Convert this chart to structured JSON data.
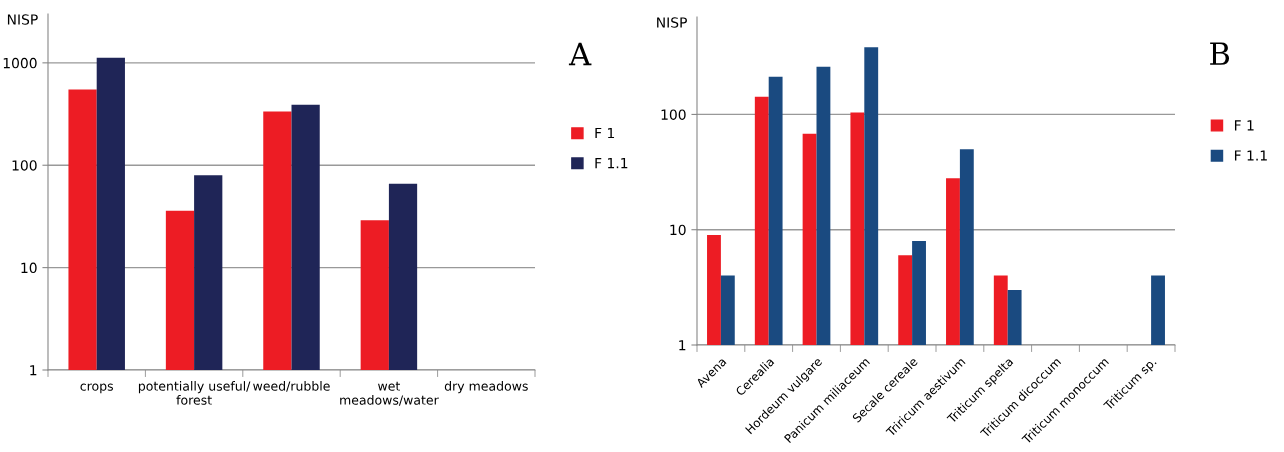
{
  "chart_data": [
    {
      "type": "bar",
      "ylabel": "NISP",
      "categories": [
        "crops",
        "potentially useful/\nforest",
        "weed/rubble",
        "wet\nmeadows/water",
        "dry meadows"
      ],
      "series": [
        {
          "name": "F 1",
          "color": "#ed1c24",
          "values": [
            550,
            36,
            335,
            29,
            null
          ]
        },
        {
          "name": "F 1.1",
          "color": "#1f2557",
          "values": [
            1120,
            80,
            390,
            66,
            null
          ]
        }
      ],
      "log": true,
      "ylim": [
        1,
        3000
      ],
      "yticks": [
        1,
        10,
        100,
        1000
      ],
      "grid": "y",
      "legend": "right",
      "annotations": [
        "A"
      ]
    },
    {
      "type": "bar",
      "ylabel": "NISP",
      "categories": [
        "Avena",
        "Cerealia",
        "Hordeum vulgare",
        "Panicum miliaceum",
        "Secale cereale",
        "Triricum aestivum",
        "Triticum spelta",
        "Triticum dicoccum",
        "Triticum monoccum",
        "Triticum sp."
      ],
      "series": [
        {
          "name": "F 1",
          "color": "#ed1c24",
          "values": [
            9,
            142,
            68,
            104,
            6,
            28,
            4,
            null,
            null,
            null
          ]
        },
        {
          "name": "F 1.1",
          "color": "#1a4a80",
          "values": [
            4,
            212,
            259,
            383,
            8,
            50,
            3,
            null,
            null,
            4
          ]
        }
      ],
      "log": true,
      "ylim": [
        1,
        700
      ],
      "yticks": [
        1,
        10,
        100
      ],
      "grid": "y",
      "legend": "right",
      "annotations": [
        "B"
      ]
    }
  ]
}
